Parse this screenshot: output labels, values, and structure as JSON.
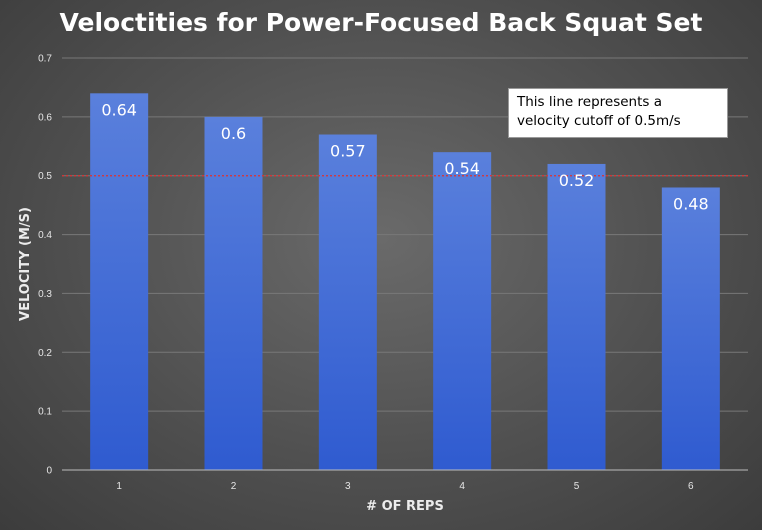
{
  "chart_data": {
    "type": "bar",
    "title": "Veloctities for Power-Focused Back Squat Set",
    "xlabel": "# OF REPS",
    "ylabel": "VELOCITY (M/S)",
    "categories": [
      "1",
      "2",
      "3",
      "4",
      "5",
      "6"
    ],
    "values": [
      0.64,
      0.6,
      0.57,
      0.54,
      0.52,
      0.48
    ],
    "data_labels": [
      "0.64",
      "0.6",
      "0.57",
      "0.54",
      "0.52",
      "0.48"
    ],
    "ylim": [
      0,
      0.7
    ],
    "yticks": [
      "0",
      "0.1",
      "0.2",
      "0.3",
      "0.4",
      "0.5",
      "0.6",
      "0.7"
    ],
    "grid": true,
    "reference_line": {
      "value": 0.5,
      "color": "#e03030"
    },
    "annotation": "This line represents a velocity cutoff of 0.5m/s",
    "bar_color": "#4a72d8"
  }
}
